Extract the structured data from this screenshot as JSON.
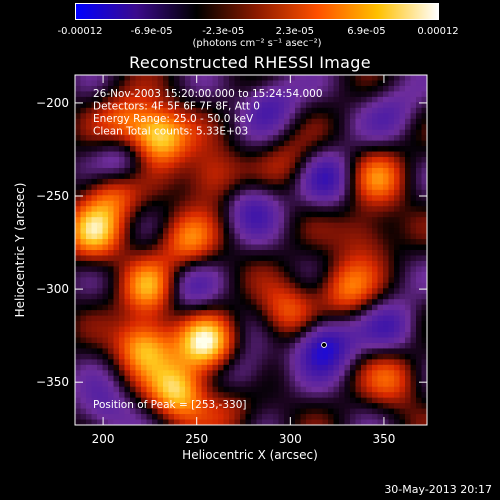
{
  "colorbar": {
    "labels": [
      "-0.00012",
      "-6.9e-05",
      "-2.3e-05",
      "2.3e-05",
      "6.9e-05",
      "0.00012"
    ],
    "unit_label": "(photons cm⁻² s⁻¹ asec⁻²)",
    "colors": [
      "#0000ff",
      "#3b0a8c",
      "#000000",
      "#8c1a00",
      "#ff5000",
      "#ffc000",
      "#ffffff"
    ]
  },
  "chart_data": {
    "type": "heatmap",
    "title": "Reconstructed RHESSI Image",
    "xlabel": "Heliocentric X (arcsec)",
    "ylabel": "Heliocentric Y (arcsec)",
    "xlim": [
      185,
      373
    ],
    "ylim": [
      -373,
      -185
    ],
    "xticks": [
      200,
      250,
      300,
      350
    ],
    "yticks": [
      -350,
      -300,
      -250,
      -200
    ],
    "xtick_labels": [
      "200",
      "250",
      "300",
      "350"
    ],
    "ytick_labels": [
      "−350",
      "−300",
      "−250",
      "−200"
    ],
    "colorbar_range": [
      -0.00012,
      0.00012
    ],
    "annotations": [
      "26-Nov-2003 15:20:00.000 to 15:24:54.000",
      "Detectors: 4F 5F 6F 7F 8F, Att 0",
      "Energy Range: 25.0 - 50.0 keV",
      "Clean     Total counts: 5.33E+03"
    ],
    "peak_label": "Position of Peak = [253,-330]",
    "peak": [
      253,
      -330
    ],
    "blobs": [
      {
        "x": 230,
        "y": -218,
        "v": 1.0
      },
      {
        "x": 255,
        "y": -330,
        "v": 1.0
      },
      {
        "x": 222,
        "y": -330,
        "v": 0.85
      },
      {
        "x": 240,
        "y": -355,
        "v": 0.9
      },
      {
        "x": 195,
        "y": -270,
        "v": 0.75
      },
      {
        "x": 205,
        "y": -248,
        "v": 0.65
      },
      {
        "x": 245,
        "y": -275,
        "v": 0.6
      },
      {
        "x": 225,
        "y": -300,
        "v": 0.7
      },
      {
        "x": 258,
        "y": -240,
        "v": 0.55
      },
      {
        "x": 298,
        "y": -312,
        "v": 0.55
      },
      {
        "x": 330,
        "y": -300,
        "v": 0.6
      },
      {
        "x": 348,
        "y": -240,
        "v": 0.55
      },
      {
        "x": 355,
        "y": -348,
        "v": 0.5
      },
      {
        "x": 300,
        "y": -232,
        "v": 0.35
      },
      {
        "x": 212,
        "y": -210,
        "v": 0.55
      },
      {
        "x": 270,
        "y": -365,
        "v": 0.35
      },
      {
        "x": 340,
        "y": -270,
        "v": 0.4
      },
      {
        "x": 320,
        "y": -240,
        "v": -0.5
      },
      {
        "x": 318,
        "y": -330,
        "v": -0.8
      },
      {
        "x": 280,
        "y": -255,
        "v": -0.45
      },
      {
        "x": 245,
        "y": -300,
        "v": -0.4
      },
      {
        "x": 210,
        "y": -232,
        "v": -0.55
      },
      {
        "x": 290,
        "y": -200,
        "v": -0.45
      },
      {
        "x": 355,
        "y": -320,
        "v": -0.45
      },
      {
        "x": 200,
        "y": -365,
        "v": -0.4
      },
      {
        "x": 275,
        "y": -345,
        "v": -0.4
      },
      {
        "x": 355,
        "y": -205,
        "v": -0.35
      }
    ]
  },
  "footer": {
    "date": "30-May-2013 20:17"
  }
}
